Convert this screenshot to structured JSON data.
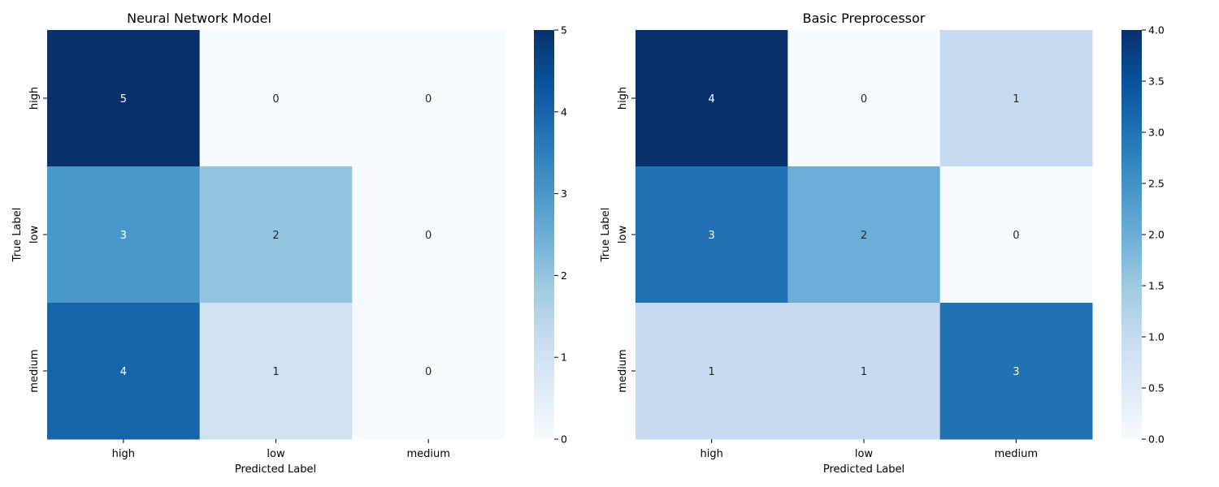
{
  "chart_data": [
    {
      "type": "heatmap",
      "title": "Neural Network Model",
      "xlabel": "Predicted Label",
      "ylabel": "True Label",
      "x_categories": [
        "high",
        "low",
        "medium"
      ],
      "y_categories": [
        "high",
        "low",
        "medium"
      ],
      "values": [
        [
          5,
          0,
          0
        ],
        [
          3,
          2,
          0
        ],
        [
          4,
          1,
          0
        ]
      ],
      "colormap": "Blues",
      "vmin": 0,
      "vmax": 5,
      "colorbar_ticks": [
        "0",
        "1",
        "2",
        "3",
        "4",
        "5"
      ],
      "colorbar_tick_values": [
        0,
        1,
        2,
        3,
        4,
        5
      ]
    },
    {
      "type": "heatmap",
      "title": "Basic Preprocessor",
      "xlabel": "Predicted Label",
      "ylabel": "True Label",
      "x_categories": [
        "high",
        "low",
        "medium"
      ],
      "y_categories": [
        "high",
        "low",
        "medium"
      ],
      "values": [
        [
          4,
          0,
          1
        ],
        [
          3,
          2,
          0
        ],
        [
          1,
          1,
          3
        ]
      ],
      "colormap": "Blues",
      "vmin": 0,
      "vmax": 4,
      "colorbar_ticks": [
        "0.0",
        "0.5",
        "1.0",
        "1.5",
        "2.0",
        "2.5",
        "3.0",
        "3.5",
        "4.0"
      ],
      "colorbar_tick_values": [
        0,
        0.5,
        1,
        1.5,
        2,
        2.5,
        3,
        3.5,
        4
      ]
    }
  ]
}
